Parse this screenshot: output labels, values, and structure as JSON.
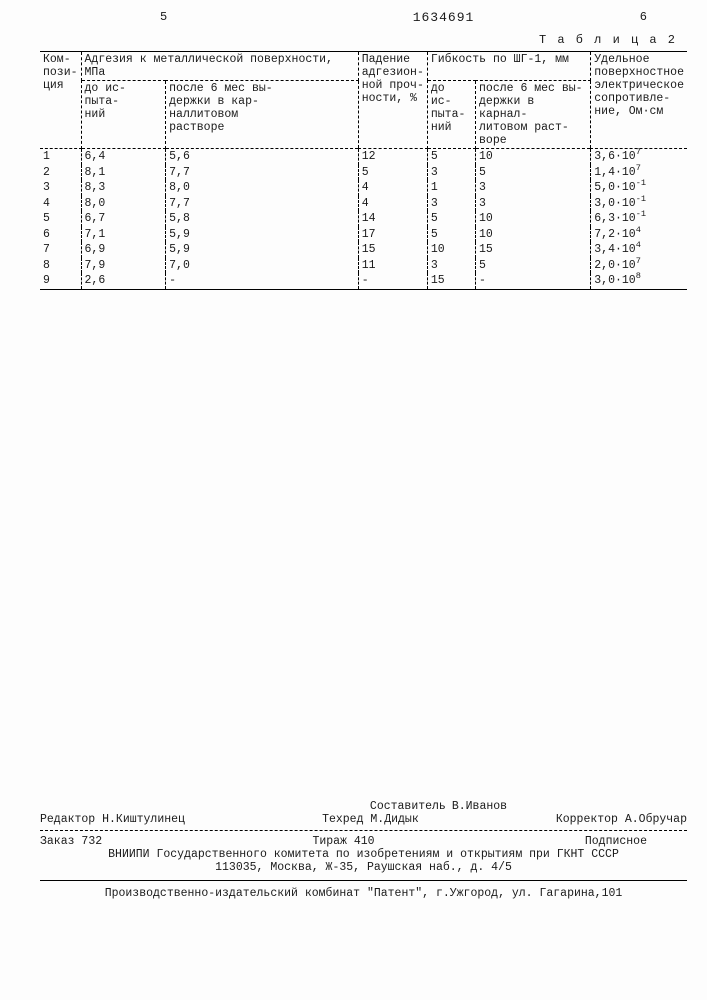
{
  "page": {
    "left_num": "5",
    "doc_num": "1634691",
    "right_num": "6"
  },
  "table": {
    "caption": "Т а б л и ц а  2",
    "columns": {
      "composition": "Ком-\nпози-\nция",
      "adhesion_group": "Адгезия к металлической поверхности, МПа",
      "adhesion_before": "до ис-\nпыта-\nний",
      "adhesion_after": "после 6 мес вы-\nдержки в кар-\nналлитовом\nрастворе",
      "drop": "Падение\nадгезион-\nной проч-\nности, %",
      "flex_group": "Гибкость по ШГ-1, мм",
      "flex_before": "до ис-\nпыта-\nний",
      "flex_after": "после 6 мес вы-\nдержки в карнал-\nлитовом раст-\nворе",
      "resistance": "Удельное\nповерхностное\nэлектрическое\nсопротивле-\nние, Ом·см"
    },
    "rows": [
      {
        "n": "1",
        "a1": "6,4",
        "a2": "5,6",
        "d": "12",
        "f1": "5",
        "f2": "10",
        "r": "3,6·10",
        "re": "7"
      },
      {
        "n": "2",
        "a1": "8,1",
        "a2": "7,7",
        "d": "5",
        "f1": "3",
        "f2": "5",
        "r": "1,4·10",
        "re": "7"
      },
      {
        "n": "3",
        "a1": "8,3",
        "a2": "8,0",
        "d": "4",
        "f1": "1",
        "f2": "3",
        "r": "5,0·10",
        "re": "-1"
      },
      {
        "n": "4",
        "a1": "8,0",
        "a2": "7,7",
        "d": "4",
        "f1": "3",
        "f2": "3",
        "r": "3,0·10",
        "re": "-1"
      },
      {
        "n": "5",
        "a1": "6,7",
        "a2": "5,8",
        "d": "14",
        "f1": "5",
        "f2": "10",
        "r": "6,3·10",
        "re": "-1"
      },
      {
        "n": "6",
        "a1": "7,1",
        "a2": "5,9",
        "d": "17",
        "f1": "5",
        "f2": "10",
        "r": "7,2·10",
        "re": "4"
      },
      {
        "n": "7",
        "a1": "6,9",
        "a2": "5,9",
        "d": "15",
        "f1": "10",
        "f2": "15",
        "r": "3,4·10",
        "re": "4"
      },
      {
        "n": "8",
        "a1": "7,9",
        "a2": "7,0",
        "d": "11",
        "f1": "3",
        "f2": "5",
        "r": "2,0·10",
        "re": "7"
      },
      {
        "n": "9",
        "a1": "2,6",
        "a2": "-",
        "d": "-",
        "f1": "15",
        "f2": "-",
        "r": "3,0·10",
        "re": "8"
      }
    ]
  },
  "footer": {
    "compiler_lbl": "Составитель",
    "compiler": "В.Иванов",
    "editor_lbl": "Редактор",
    "editor": "Н.Киштулинец",
    "tech_lbl": "Техред",
    "tech": "М.Дидык",
    "corr_lbl": "Корректор",
    "corr": "А.Обручар",
    "order_lbl": "Заказ",
    "order": "732",
    "tirage_lbl": "Тираж",
    "tirage": "410",
    "signed": "Подписное",
    "org": "ВНИИПИ Государственного комитета по изобретениям и открытиям при ГКНТ СССР",
    "addr": "113035, Москва, Ж-35, Раушская наб., д. 4/5",
    "plant": "Производственно-издательский комбинат \"Патент\", г.Ужгород, ул. Гагарина,101"
  }
}
